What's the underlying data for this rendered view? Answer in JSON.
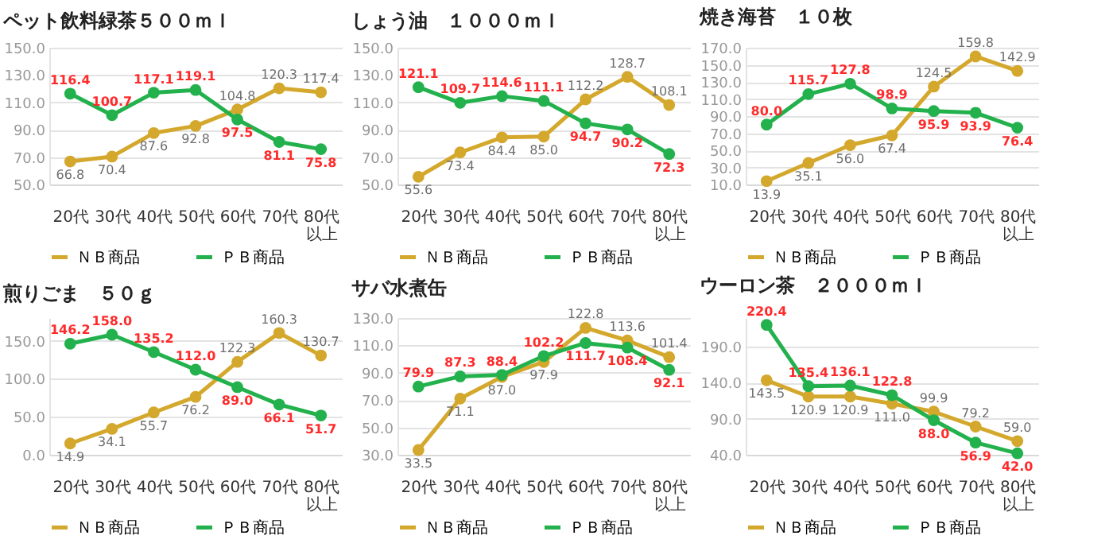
{
  "chart_data": [
    {
      "type": "line",
      "title": "ペット飲料緑茶５００ｍｌ",
      "categories": [
        "20代",
        "30代",
        "40代",
        "50代",
        "60代",
        "70代",
        "80代以上"
      ],
      "series": [
        {
          "name": "ＮＢ商品",
          "color": "#d4a82c",
          "values": [
            66.8,
            70.4,
            87.6,
            92.8,
            104.8,
            120.3,
            117.4
          ],
          "value_labels": [
            "66.8",
            "70.4",
            "87.6",
            "92.8",
            "104.8",
            "120.3",
            "117.4"
          ]
        },
        {
          "name": "ＰＢ商品",
          "color": "#22b14c",
          "values": [
            116.4,
            100.7,
            117.1,
            119.1,
            97.5,
            81.1,
            75.8
          ],
          "value_labels": [
            "116.4",
            "100.7",
            "117.1",
            "119.1",
            "97.5",
            "81.1",
            "75.8"
          ]
        }
      ],
      "ylim": [
        50,
        150
      ],
      "yticks": [
        {
          "value": 50,
          "label": "50.0"
        },
        {
          "value": 70,
          "label": "70.0"
        },
        {
          "value": 90,
          "label": "90.0"
        },
        {
          "value": 110,
          "label": "110.0"
        },
        {
          "value": 130,
          "label": "130.0"
        },
        {
          "value": 150,
          "label": "150.0"
        }
      ],
      "grid": "y",
      "legend": "bottom",
      "marker": "circle"
    },
    {
      "type": "line",
      "title": "しょう油　１０００ｍｌ",
      "categories": [
        "20代",
        "30代",
        "40代",
        "50代",
        "60代",
        "70代",
        "80代以上"
      ],
      "series": [
        {
          "name": "ＮＢ商品",
          "color": "#d4a82c",
          "values": [
            55.6,
            73.4,
            84.4,
            85.0,
            112.2,
            128.7,
            108.1
          ],
          "value_labels": [
            "55.6",
            "73.4",
            "84.4",
            "85.0",
            "112.2",
            "128.7",
            "108.1"
          ]
        },
        {
          "name": "ＰＢ商品",
          "color": "#22b14c",
          "values": [
            121.1,
            109.7,
            114.6,
            111.1,
            94.7,
            90.2,
            72.3
          ],
          "value_labels": [
            "121.1",
            "109.7",
            "114.6",
            "111.1",
            "94.7",
            "90.2",
            "72.3"
          ]
        }
      ],
      "ylim": [
        50,
        150
      ],
      "yticks": [
        {
          "value": 50,
          "label": "50.0"
        },
        {
          "value": 70,
          "label": "70.0"
        },
        {
          "value": 90,
          "label": "90.0"
        },
        {
          "value": 110,
          "label": "110.0"
        },
        {
          "value": 130,
          "label": "130.0"
        },
        {
          "value": 150,
          "label": "150.0"
        }
      ],
      "grid": "y",
      "legend": "bottom",
      "marker": "circle"
    },
    {
      "type": "line",
      "title": "焼き海苔　１０枚",
      "categories": [
        "20代",
        "30代",
        "40代",
        "50代",
        "60代",
        "70代",
        "80代以上"
      ],
      "series": [
        {
          "name": "ＮＢ商品",
          "color": "#d4a82c",
          "values": [
            13.9,
            35.1,
            56.0,
            67.4,
            124.5,
            159.8,
            142.9
          ],
          "value_labels": [
            "13.9",
            "35.1",
            "56.0",
            "67.4",
            "124.5",
            "159.8",
            "142.9"
          ]
        },
        {
          "name": "ＰＢ商品",
          "color": "#22b14c",
          "values": [
            80.0,
            115.7,
            127.8,
            98.9,
            95.9,
            93.9,
            76.4
          ],
          "value_labels": [
            "80.0",
            "115.7",
            "127.8",
            "98.9",
            "95.9",
            "93.9",
            "76.4"
          ]
        }
      ],
      "ylim": [
        10,
        170
      ],
      "yticks": [
        {
          "value": 10,
          "label": "10.0"
        },
        {
          "value": 30,
          "label": "30.0"
        },
        {
          "value": 50,
          "label": "50.0"
        },
        {
          "value": 70,
          "label": "70.0"
        },
        {
          "value": 90,
          "label": "90.0"
        },
        {
          "value": 110,
          "label": "110.0"
        },
        {
          "value": 130,
          "label": "130.0"
        },
        {
          "value": 150,
          "label": "150.0"
        },
        {
          "value": 170,
          "label": "170.0"
        }
      ],
      "grid": "y",
      "legend": "bottom",
      "marker": "circle"
    },
    {
      "type": "line",
      "title": "煎りごま　５０ｇ",
      "categories": [
        "20代",
        "30代",
        "40代",
        "50代",
        "60代",
        "70代",
        "80代以上"
      ],
      "series": [
        {
          "name": "ＮＢ商品",
          "color": "#d4a82c",
          "values": [
            14.9,
            34.1,
            55.7,
            76.2,
            122.3,
            160.3,
            130.7
          ],
          "value_labels": [
            "14.9",
            "34.1",
            "55.7",
            "76.2",
            "122.3",
            "160.3",
            "130.7"
          ]
        },
        {
          "name": "ＰＢ商品",
          "color": "#22b14c",
          "values": [
            146.2,
            158.0,
            135.2,
            112.0,
            89.0,
            66.1,
            51.7
          ],
          "value_labels": [
            "146.2",
            "158.0",
            "135.2",
            "112.0",
            "89.0",
            "66.1",
            "51.7"
          ]
        }
      ],
      "ylim": [
        0,
        180
      ],
      "yticks": [
        {
          "value": 0,
          "label": "0.0"
        },
        {
          "value": 50,
          "label": "50.0"
        },
        {
          "value": 100,
          "label": "100.0"
        },
        {
          "value": 150,
          "label": "150.0"
        }
      ],
      "grid": "y",
      "legend": "bottom",
      "marker": "circle"
    },
    {
      "type": "line",
      "title": "サバ水煮缶",
      "categories": [
        "20代",
        "30代",
        "40代",
        "50代",
        "60代",
        "70代",
        "80代以上"
      ],
      "series": [
        {
          "name": "ＮＢ商品",
          "color": "#d4a82c",
          "values": [
            33.5,
            71.1,
            87.0,
            97.9,
            122.8,
            113.6,
            101.4
          ],
          "value_labels": [
            "33.5",
            "71.1",
            "87.0",
            "97.9",
            "122.8",
            "113.6",
            "101.4"
          ]
        },
        {
          "name": "ＰＢ商品",
          "color": "#22b14c",
          "values": [
            79.9,
            87.3,
            88.4,
            102.2,
            111.7,
            108.4,
            92.1
          ],
          "value_labels": [
            "79.9",
            "87.3",
            "88.4",
            "102.2",
            "111.7",
            "108.4",
            "92.1"
          ]
        }
      ],
      "ylim": [
        30,
        130
      ],
      "yticks": [
        {
          "value": 30,
          "label": "30.0"
        },
        {
          "value": 50,
          "label": "50.0"
        },
        {
          "value": 70,
          "label": "70.0"
        },
        {
          "value": 90,
          "label": "90.0"
        },
        {
          "value": 110,
          "label": "110.0"
        },
        {
          "value": 130,
          "label": "130.0"
        }
      ],
      "grid": "y",
      "legend": "bottom",
      "marker": "circle"
    },
    {
      "type": "line",
      "title": "ウーロン茶　２０００ｍｌ",
      "categories": [
        "20代",
        "30代",
        "40代",
        "50代",
        "60代",
        "70代",
        "80代以上"
      ],
      "series": [
        {
          "name": "ＮＢ商品",
          "color": "#d4a82c",
          "values": [
            143.5,
            120.9,
            120.9,
            111.0,
            99.9,
            79.2,
            59.0
          ],
          "value_labels": [
            "143.5",
            "120.9",
            "120.9",
            "111.0",
            "99.9",
            "79.2",
            "59.0"
          ]
        },
        {
          "name": "ＰＢ商品",
          "color": "#22b14c",
          "values": [
            220.4,
            135.4,
            136.1,
            122.8,
            88.0,
            56.9,
            42.0
          ],
          "value_labels": [
            "220.4",
            "135.4",
            "136.1",
            "122.8",
            "88.0",
            "56.9",
            "42.0"
          ]
        }
      ],
      "ylim": [
        40,
        230
      ],
      "yticks": [
        {
          "value": 40,
          "label": "40.0"
        },
        {
          "value": 90,
          "label": "90.0"
        },
        {
          "value": 140,
          "label": "140.0"
        },
        {
          "value": 190,
          "label": "190.0"
        }
      ],
      "grid": "y",
      "legend": "bottom",
      "marker": "circle"
    }
  ]
}
